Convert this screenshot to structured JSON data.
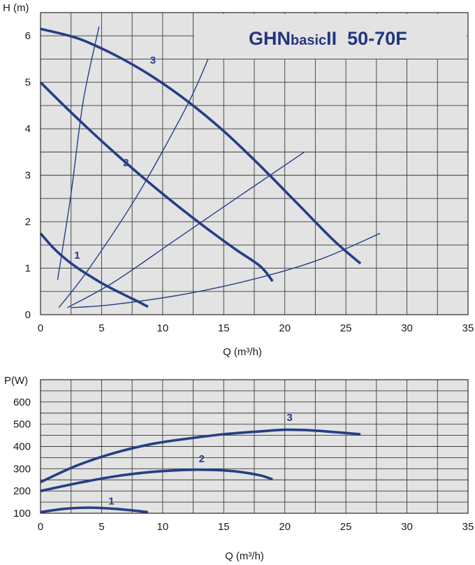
{
  "colors": {
    "curve": "#243f86",
    "grid": "#3a3a3a",
    "panel": "#e3e3e3",
    "title": "#24357f"
  },
  "chart_data": [
    {
      "type": "line",
      "title": "GHNbasicII  50-70F",
      "title_parts": {
        "main": "GHN",
        "small": "basic",
        "tail": "II  50-70F"
      },
      "xlabel": "Q (m³/h)",
      "ylabel": "H (m)",
      "xlim": [
        0,
        35
      ],
      "ylim": [
        0,
        6.5
      ],
      "xticks": [
        "0",
        "5",
        "10",
        "15",
        "20",
        "25",
        "30",
        "35"
      ],
      "yticks": [
        "0",
        "1",
        "2",
        "3",
        "4",
        "5",
        "6"
      ],
      "grid": true,
      "series": [
        {
          "name": "1",
          "x": [
            0,
            1,
            2,
            3,
            4,
            5,
            6,
            7,
            8,
            8.8
          ],
          "y": [
            1.75,
            1.45,
            1.21,
            1.01,
            0.84,
            0.68,
            0.54,
            0.41,
            0.28,
            0.17
          ]
        },
        {
          "name": "2",
          "x": [
            0,
            2,
            4,
            6,
            8,
            10,
            12,
            14,
            16,
            18,
            19
          ],
          "y": [
            5.0,
            4.48,
            3.98,
            3.5,
            3.04,
            2.6,
            2.18,
            1.78,
            1.4,
            1.04,
            0.72
          ]
        },
        {
          "name": "3",
          "x": [
            0,
            3,
            6,
            9,
            12,
            15,
            18,
            21,
            24,
            26.2
          ],
          "y": [
            6.15,
            5.95,
            5.6,
            5.15,
            4.6,
            3.95,
            3.2,
            2.4,
            1.6,
            1.1
          ]
        }
      ],
      "system_curves": [
        {
          "x": [
            1.4,
            2.5,
            3.5,
            4.8
          ],
          "y": [
            0.75,
            2.6,
            4.6,
            6.2
          ]
        },
        {
          "x": [
            1.5,
            4,
            8,
            12,
            13.8
          ],
          "y": [
            0.15,
            1.0,
            2.6,
            4.5,
            5.55
          ]
        },
        {
          "x": [
            2.2,
            6,
            11,
            16,
            21.6
          ],
          "y": [
            0.15,
            0.7,
            1.6,
            2.5,
            3.5
          ]
        },
        {
          "x": [
            2.5,
            6,
            12,
            18,
            23,
            27.8
          ],
          "y": [
            0.15,
            0.22,
            0.45,
            0.8,
            1.2,
            1.75
          ]
        }
      ],
      "labels": [
        {
          "text": "1",
          "x": 3.0,
          "y": 1.2
        },
        {
          "text": "2",
          "x": 7.0,
          "y": 3.2
        },
        {
          "text": "3",
          "x": 9.2,
          "y": 5.4
        }
      ]
    },
    {
      "type": "line",
      "xlabel": "Q (m³/h)",
      "ylabel": "P(W)",
      "xlim": [
        0,
        35
      ],
      "ylim": [
        100,
        700
      ],
      "xticks": [
        "0",
        "5",
        "10",
        "15",
        "20",
        "25",
        "30",
        "35"
      ],
      "yticks": [
        "100",
        "200",
        "300",
        "400",
        "500",
        "600"
      ],
      "grid": true,
      "series": [
        {
          "name": "1",
          "x": [
            0,
            2,
            4,
            6,
            8,
            8.8
          ],
          "y": [
            105,
            120,
            125,
            120,
            110,
            105
          ]
        },
        {
          "name": "2",
          "x": [
            0,
            3,
            6,
            9,
            12,
            14,
            16,
            18,
            19
          ],
          "y": [
            200,
            235,
            265,
            285,
            295,
            295,
            288,
            270,
            252
          ]
        },
        {
          "name": "3",
          "x": [
            0,
            3,
            6,
            9,
            12,
            15,
            18,
            20,
            22,
            24,
            26.2
          ],
          "y": [
            240,
            315,
            370,
            410,
            435,
            455,
            468,
            475,
            473,
            465,
            455
          ]
        }
      ],
      "labels": [
        {
          "text": "1",
          "x": 5.8,
          "y": 140
        },
        {
          "text": "2",
          "x": 13.2,
          "y": 330
        },
        {
          "text": "3",
          "x": 20.4,
          "y": 515
        }
      ]
    }
  ]
}
